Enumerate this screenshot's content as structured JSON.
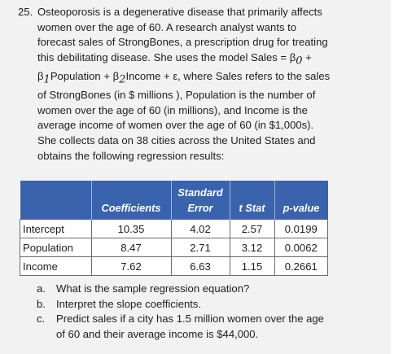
{
  "problem": {
    "number": "25.",
    "lines": [
      "Osteoporosis is a degenerative disease that primarily affects",
      "women over the age of 60. A research analyst wants to",
      "forecast sales of StrongBones, a prescription drug for treating",
      "this debilitating disease. She uses the model Sales = β",
      "β",
      "of StrongBones (in $ millions ), Population is the number of",
      "women over the age of 60 (in millions), and Income is the",
      "average income of women over the age of 60 (in $1,000s).",
      "She collects data on 38 cities across the United States and",
      "obtains the following regression results:"
    ],
    "line4_tail": " +",
    "line5_mid1": "Population + β",
    "line5_mid2": "Income + ε, where Sales refers to the sales",
    "sub0": "0",
    "sub1": "1",
    "sub2": "2"
  },
  "table": {
    "header_top": [
      "",
      "",
      "Standard",
      "",
      ""
    ],
    "header_bottom": [
      "",
      "Coefficients",
      "Error",
      "t Stat",
      "p-value"
    ],
    "rows": [
      {
        "label": "Intercept",
        "coef": "10.35",
        "se": "4.02",
        "t": "2.57",
        "p": "0.0199"
      },
      {
        "label": "Population",
        "coef": "8.47",
        "se": "2.71",
        "t": "3.12",
        "p": "0.0062"
      },
      {
        "label": "Income",
        "coef": "7.62",
        "se": "6.63",
        "t": "1.15",
        "p": "0.2661"
      }
    ]
  },
  "questions": [
    {
      "label": "a.",
      "lines": [
        "What is the sample regression equation?"
      ]
    },
    {
      "label": "b.",
      "lines": [
        "Interpret the slope coefficients."
      ]
    },
    {
      "label": "c.",
      "lines": [
        "Predict sales if a city has 1.5 million women over the age",
        "of 60 and their average income is $44,000."
      ]
    }
  ],
  "colors": {
    "header_bg": "#3a63ad",
    "page_bg": "#f2f2f2"
  }
}
